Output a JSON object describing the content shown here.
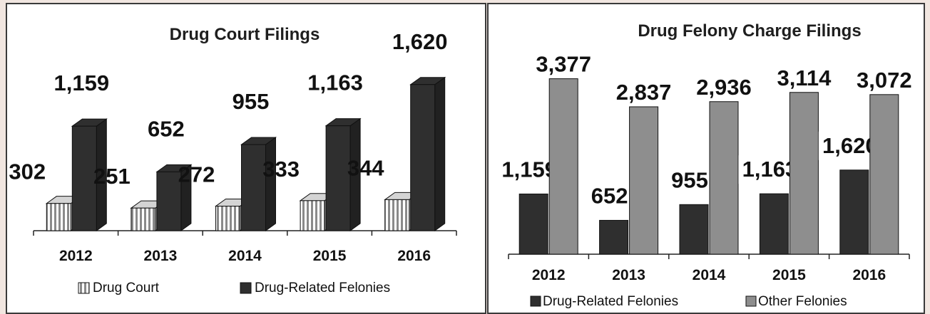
{
  "colors": {
    "drug_court": "#d4d4d4",
    "drug_related": "#2f2f2f",
    "other_felonies": "#8e8e8e",
    "axis": "#222222"
  },
  "chart_data": [
    {
      "type": "bar",
      "style": "3d-clustered-column",
      "title": "Drug Court Filings",
      "categories": [
        "2012",
        "2013",
        "2014",
        "2015",
        "2016"
      ],
      "series": [
        {
          "name": "Drug Court",
          "values": [
            302,
            251,
            272,
            333,
            344
          ],
          "labels": [
            "302",
            "251",
            "272",
            "333",
            "344"
          ],
          "pattern": "vertical-stripes"
        },
        {
          "name": "Drug-Related Felonies",
          "values": [
            1159,
            652,
            955,
            1163,
            1620
          ],
          "labels": [
            "1,159",
            "652",
            "955",
            "1,163",
            "1,620"
          ]
        }
      ],
      "ylim": [
        0,
        1800
      ],
      "grid": false,
      "legend": "bottom"
    },
    {
      "type": "bar",
      "title": "Drug Felony Charge Filings",
      "categories": [
        "2012",
        "2013",
        "2014",
        "2015",
        "2016"
      ],
      "series": [
        {
          "name": "Drug-Related Felonies",
          "values": [
            1159,
            652,
            955,
            1163,
            1620
          ],
          "labels": [
            "1,159",
            "652",
            "955",
            "1,163",
            "1,620"
          ]
        },
        {
          "name": "Other Felonies",
          "values": [
            3377,
            2837,
            2936,
            3114,
            3072
          ],
          "labels": [
            "3,377",
            "2,837",
            "2,936",
            "3,114",
            "3,072"
          ]
        }
      ],
      "ylim": [
        0,
        3700
      ],
      "grid": false,
      "legend": "bottom"
    }
  ]
}
